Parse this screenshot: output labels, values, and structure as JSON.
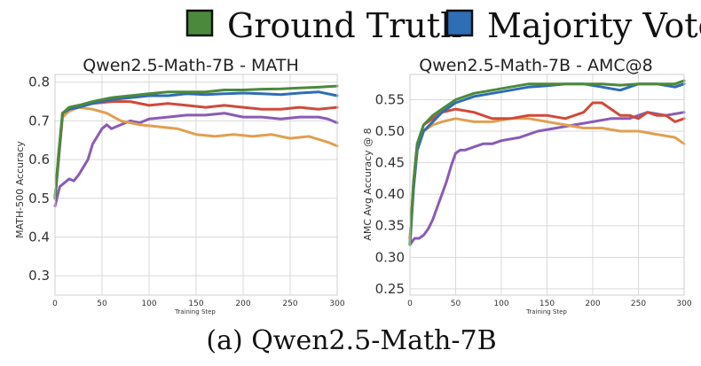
{
  "legend": {
    "entries": [
      {
        "label": "Ground Truth",
        "color": "#4b8a3c"
      },
      {
        "label": "Majority Vote",
        "color": "#2f6db5"
      }
    ]
  },
  "caption": "(a) Qwen2.5-Math-7B",
  "chart_data": [
    {
      "type": "line",
      "title": "Qwen2.5-Math-7B - MATH",
      "xlabel": "Training Step",
      "ylabel": "MATH-500 Accuracy",
      "xlim": [
        0,
        300
      ],
      "ylim": [
        0.25,
        0.82
      ],
      "xticks": [
        0,
        50,
        100,
        150,
        200,
        250,
        300
      ],
      "yticks": [
        0.3,
        0.4,
        0.5,
        0.6,
        0.7,
        0.8
      ],
      "ytick_labels": [
        "0.3",
        "0.4",
        "0.5",
        "0.6",
        "0.7",
        "0.8"
      ],
      "grid": true,
      "series": [
        {
          "name": "Ground Truth",
          "color": "#4b8a3c",
          "x": [
            0,
            4,
            8,
            15,
            25,
            40,
            60,
            80,
            100,
            120,
            140,
            160,
            180,
            200,
            220,
            240,
            260,
            280,
            300
          ],
          "y": [
            0.5,
            0.62,
            0.72,
            0.735,
            0.74,
            0.75,
            0.76,
            0.765,
            0.77,
            0.775,
            0.775,
            0.775,
            0.78,
            0.78,
            0.782,
            0.783,
            0.785,
            0.787,
            0.79
          ]
        },
        {
          "name": "Majority Vote",
          "color": "#2f6db5",
          "x": [
            0,
            4,
            8,
            15,
            25,
            40,
            60,
            80,
            100,
            120,
            140,
            160,
            180,
            200,
            220,
            240,
            260,
            280,
            300
          ],
          "y": [
            0.5,
            0.61,
            0.72,
            0.73,
            0.735,
            0.745,
            0.755,
            0.76,
            0.765,
            0.765,
            0.77,
            0.768,
            0.77,
            0.772,
            0.77,
            0.768,
            0.772,
            0.775,
            0.765
          ]
        },
        {
          "name": "Red",
          "color": "#d04a3a",
          "x": [
            0,
            4,
            8,
            15,
            25,
            40,
            60,
            80,
            100,
            120,
            140,
            160,
            180,
            200,
            220,
            240,
            260,
            280,
            300
          ],
          "y": [
            0.5,
            0.61,
            0.72,
            0.73,
            0.74,
            0.745,
            0.75,
            0.75,
            0.74,
            0.745,
            0.74,
            0.735,
            0.74,
            0.735,
            0.73,
            0.73,
            0.735,
            0.73,
            0.735
          ]
        },
        {
          "name": "Orange",
          "color": "#e0a050",
          "x": [
            0,
            4,
            8,
            15,
            25,
            40,
            55,
            70,
            90,
            110,
            130,
            150,
            170,
            190,
            210,
            230,
            250,
            270,
            290,
            300
          ],
          "y": [
            0.5,
            0.6,
            0.71,
            0.725,
            0.735,
            0.73,
            0.72,
            0.7,
            0.69,
            0.685,
            0.68,
            0.665,
            0.66,
            0.665,
            0.66,
            0.665,
            0.655,
            0.66,
            0.645,
            0.635
          ]
        },
        {
          "name": "Purple",
          "color": "#8a5bb5",
          "x": [
            0,
            5,
            10,
            15,
            20,
            25,
            30,
            35,
            40,
            45,
            50,
            55,
            60,
            70,
            80,
            90,
            100,
            120,
            140,
            160,
            180,
            200,
            220,
            240,
            260,
            280,
            290,
            300
          ],
          "y": [
            0.48,
            0.53,
            0.54,
            0.55,
            0.545,
            0.56,
            0.58,
            0.6,
            0.64,
            0.66,
            0.68,
            0.69,
            0.68,
            0.69,
            0.7,
            0.695,
            0.705,
            0.71,
            0.715,
            0.715,
            0.72,
            0.71,
            0.71,
            0.705,
            0.71,
            0.71,
            0.705,
            0.695
          ]
        }
      ]
    },
    {
      "type": "line",
      "title": "Qwen2.5-Math-7B - AMC@8",
      "xlabel": "Training Step",
      "ylabel": "AMC Avg Accuracy @ 8",
      "xlim": [
        0,
        300
      ],
      "ylim": [
        0.24,
        0.59
      ],
      "xticks": [
        0,
        50,
        100,
        150,
        200,
        250,
        300
      ],
      "yticks": [
        0.25,
        0.3,
        0.35,
        0.4,
        0.45,
        0.5,
        0.55
      ],
      "ytick_labels": [
        "0.25",
        "0.30",
        "0.35",
        "0.40",
        "0.45",
        "0.50",
        "0.55"
      ],
      "grid": true,
      "series": [
        {
          "name": "Ground Truth",
          "color": "#4b8a3c",
          "x": [
            0,
            4,
            8,
            15,
            25,
            35,
            50,
            70,
            90,
            110,
            130,
            150,
            170,
            190,
            210,
            230,
            250,
            270,
            290,
            300
          ],
          "y": [
            0.32,
            0.42,
            0.48,
            0.51,
            0.525,
            0.535,
            0.55,
            0.56,
            0.565,
            0.57,
            0.575,
            0.575,
            0.575,
            0.575,
            0.575,
            0.573,
            0.575,
            0.575,
            0.575,
            0.58
          ]
        },
        {
          "name": "Majority Vote",
          "color": "#2f6db5",
          "x": [
            0,
            4,
            8,
            15,
            25,
            35,
            50,
            70,
            90,
            110,
            130,
            150,
            170,
            190,
            210,
            230,
            250,
            270,
            290,
            300
          ],
          "y": [
            0.32,
            0.41,
            0.47,
            0.5,
            0.515,
            0.53,
            0.545,
            0.555,
            0.56,
            0.565,
            0.57,
            0.572,
            0.575,
            0.575,
            0.57,
            0.565,
            0.575,
            0.575,
            0.57,
            0.575
          ]
        },
        {
          "name": "Red",
          "color": "#d04a3a",
          "x": [
            0,
            4,
            8,
            15,
            25,
            35,
            50,
            70,
            90,
            110,
            130,
            150,
            170,
            190,
            200,
            210,
            220,
            230,
            240,
            250,
            260,
            270,
            280,
            290,
            300
          ],
          "y": [
            0.33,
            0.42,
            0.48,
            0.51,
            0.52,
            0.53,
            0.535,
            0.53,
            0.52,
            0.52,
            0.525,
            0.525,
            0.52,
            0.53,
            0.545,
            0.545,
            0.535,
            0.525,
            0.525,
            0.52,
            0.53,
            0.525,
            0.525,
            0.515,
            0.52
          ]
        },
        {
          "name": "Orange",
          "color": "#e0a050",
          "x": [
            0,
            4,
            8,
            15,
            25,
            35,
            50,
            70,
            90,
            110,
            130,
            150,
            170,
            190,
            210,
            230,
            250,
            270,
            290,
            300
          ],
          "y": [
            0.33,
            0.41,
            0.47,
            0.5,
            0.51,
            0.515,
            0.52,
            0.515,
            0.515,
            0.52,
            0.52,
            0.515,
            0.51,
            0.505,
            0.505,
            0.5,
            0.5,
            0.495,
            0.49,
            0.48
          ]
        },
        {
          "name": "Purple",
          "color": "#8a5bb5",
          "x": [
            0,
            5,
            10,
            15,
            20,
            25,
            30,
            35,
            40,
            45,
            50,
            55,
            60,
            70,
            80,
            90,
            100,
            120,
            140,
            160,
            180,
            200,
            220,
            240,
            260,
            280,
            300
          ],
          "y": [
            0.32,
            0.33,
            0.33,
            0.335,
            0.345,
            0.36,
            0.38,
            0.4,
            0.42,
            0.445,
            0.465,
            0.47,
            0.47,
            0.475,
            0.48,
            0.48,
            0.485,
            0.49,
            0.5,
            0.505,
            0.51,
            0.515,
            0.52,
            0.52,
            0.53,
            0.525,
            0.53
          ]
        }
      ]
    }
  ]
}
